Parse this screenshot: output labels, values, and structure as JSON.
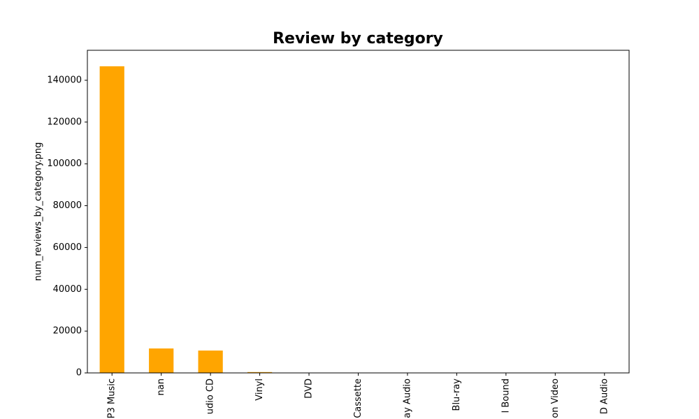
{
  "chart_data": {
    "type": "bar",
    "title": "Review by category",
    "y_label": "num_reviews_by_category.png",
    "categories": [
      "P3 Music",
      "nan",
      "udio CD",
      "Vinyl",
      "DVD",
      "Cassette",
      "ay Audio",
      "Blu-ray",
      "l Bound",
      "on Video",
      "D Audio"
    ],
    "values": [
      146700,
      11700,
      10700,
      400,
      60,
      40,
      20,
      15,
      10,
      5,
      3
    ],
    "color": "#ffa500",
    "ylim": [
      0,
      154350
    ],
    "yticks": [
      0,
      20000,
      40000,
      60000,
      80000,
      100000,
      120000,
      140000
    ],
    "grid": false
  }
}
